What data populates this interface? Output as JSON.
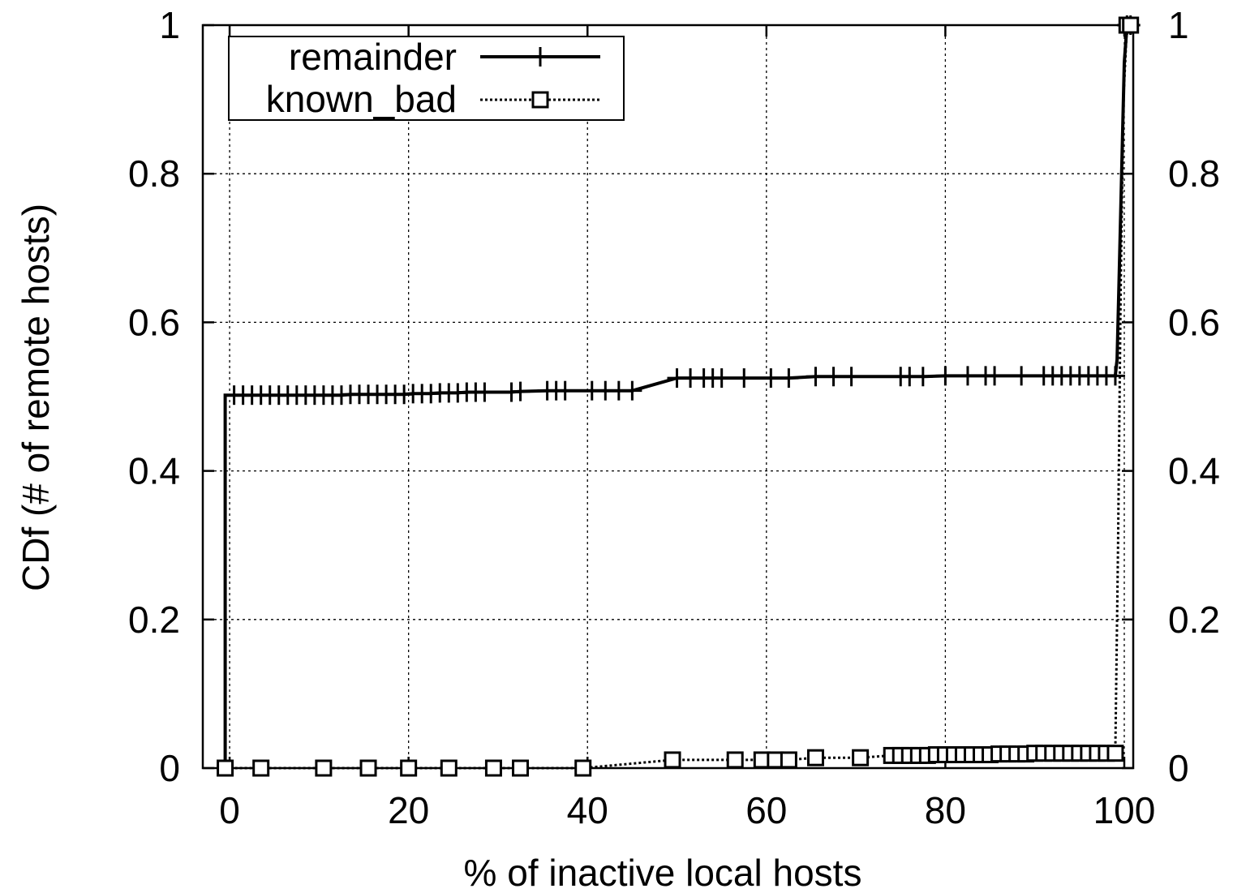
{
  "chart_data": {
    "type": "line",
    "xlabel": "% of inactive local hosts",
    "ylabel": "CDf (# of remote hosts)",
    "xlim": [
      -3,
      101
    ],
    "ylim": [
      0,
      1
    ],
    "x_ticks": [
      "0",
      "20",
      "40",
      "60",
      "80",
      "100"
    ],
    "y_ticks": [
      "0",
      "0.2",
      "0.4",
      "0.6",
      "0.8",
      "1"
    ],
    "y2_ticks": [
      "0",
      "0.2",
      "0.4",
      "0.6",
      "0.8",
      "1"
    ],
    "grid": true,
    "legend_position": "top-left",
    "series": [
      {
        "name": "remainder",
        "style": "solid",
        "marker": "plus",
        "color": "#000000",
        "points": [
          [
            -0.5,
            0
          ],
          [
            -0.5,
            0.502
          ],
          [
            0.5,
            0.502
          ],
          [
            1.5,
            0.502
          ],
          [
            2.5,
            0.502
          ],
          [
            3.5,
            0.502
          ],
          [
            4.5,
            0.502
          ],
          [
            5.5,
            0.502
          ],
          [
            6.5,
            0.502
          ],
          [
            7.5,
            0.502
          ],
          [
            8.5,
            0.502
          ],
          [
            9.5,
            0.502
          ],
          [
            10.5,
            0.502
          ],
          [
            11.5,
            0.502
          ],
          [
            12.5,
            0.502
          ],
          [
            13.5,
            0.503
          ],
          [
            14.5,
            0.503
          ],
          [
            15.5,
            0.503
          ],
          [
            16.5,
            0.503
          ],
          [
            17.5,
            0.503
          ],
          [
            18.5,
            0.503
          ],
          [
            19.5,
            0.503
          ],
          [
            20.5,
            0.504
          ],
          [
            21.5,
            0.504
          ],
          [
            22.5,
            0.504
          ],
          [
            23.5,
            0.505
          ],
          [
            24.5,
            0.505
          ],
          [
            25.5,
            0.505
          ],
          [
            26.5,
            0.506
          ],
          [
            27.5,
            0.506
          ],
          [
            28.5,
            0.506
          ],
          [
            31.5,
            0.506
          ],
          [
            32.5,
            0.507
          ],
          [
            35.5,
            0.508
          ],
          [
            36.5,
            0.508
          ],
          [
            37.5,
            0.508
          ],
          [
            40.5,
            0.508
          ],
          [
            42.0,
            0.508
          ],
          [
            43.5,
            0.508
          ],
          [
            45.0,
            0.508
          ],
          [
            50.0,
            0.525
          ],
          [
            51.5,
            0.525
          ],
          [
            53.0,
            0.525
          ],
          [
            54.0,
            0.525
          ],
          [
            55.0,
            0.525
          ],
          [
            57.5,
            0.525
          ],
          [
            60.5,
            0.525
          ],
          [
            62.5,
            0.525
          ],
          [
            65.5,
            0.527
          ],
          [
            67.5,
            0.527
          ],
          [
            69.5,
            0.527
          ],
          [
            75.0,
            0.527
          ],
          [
            76.0,
            0.527
          ],
          [
            77.5,
            0.527
          ],
          [
            80.0,
            0.528
          ],
          [
            82.5,
            0.528
          ],
          [
            84.5,
            0.528
          ],
          [
            85.5,
            0.528
          ],
          [
            88.5,
            0.528
          ],
          [
            91.0,
            0.528
          ],
          [
            92.0,
            0.528
          ],
          [
            93.0,
            0.528
          ],
          [
            94.0,
            0.528
          ],
          [
            95.0,
            0.528
          ],
          [
            96.0,
            0.528
          ],
          [
            97.0,
            0.528
          ],
          [
            98.0,
            0.528
          ],
          [
            99.0,
            0.528
          ],
          [
            99.2,
            0.55
          ],
          [
            99.4,
            0.65
          ],
          [
            99.6,
            0.75
          ],
          [
            99.8,
            0.85
          ],
          [
            100.0,
            0.95
          ],
          [
            100.3,
            1.0
          ],
          [
            100.7,
            1.0
          ]
        ],
        "markers": [
          [
            0.5,
            0.502
          ],
          [
            1.5,
            0.502
          ],
          [
            2.5,
            0.502
          ],
          [
            3.5,
            0.502
          ],
          [
            4.5,
            0.502
          ],
          [
            5.5,
            0.502
          ],
          [
            6.5,
            0.502
          ],
          [
            7.5,
            0.502
          ],
          [
            8.5,
            0.502
          ],
          [
            9.5,
            0.502
          ],
          [
            10.5,
            0.502
          ],
          [
            11.5,
            0.502
          ],
          [
            12.5,
            0.502
          ],
          [
            13.5,
            0.503
          ],
          [
            14.5,
            0.503
          ],
          [
            15.5,
            0.503
          ],
          [
            16.5,
            0.503
          ],
          [
            17.5,
            0.503
          ],
          [
            18.5,
            0.503
          ],
          [
            19.5,
            0.503
          ],
          [
            20.5,
            0.504
          ],
          [
            21.5,
            0.504
          ],
          [
            22.5,
            0.504
          ],
          [
            23.5,
            0.505
          ],
          [
            24.5,
            0.505
          ],
          [
            25.5,
            0.505
          ],
          [
            26.5,
            0.506
          ],
          [
            27.5,
            0.506
          ],
          [
            28.5,
            0.506
          ],
          [
            31.5,
            0.506
          ],
          [
            32.5,
            0.507
          ],
          [
            35.5,
            0.508
          ],
          [
            36.5,
            0.508
          ],
          [
            37.5,
            0.508
          ],
          [
            40.5,
            0.508
          ],
          [
            42.0,
            0.508
          ],
          [
            43.5,
            0.508
          ],
          [
            45.0,
            0.508
          ],
          [
            50.0,
            0.525
          ],
          [
            51.5,
            0.525
          ],
          [
            53.0,
            0.525
          ],
          [
            54.0,
            0.525
          ],
          [
            55.0,
            0.525
          ],
          [
            57.5,
            0.525
          ],
          [
            60.5,
            0.525
          ],
          [
            62.5,
            0.525
          ],
          [
            65.5,
            0.527
          ],
          [
            67.5,
            0.527
          ],
          [
            69.5,
            0.527
          ],
          [
            75.0,
            0.527
          ],
          [
            76.0,
            0.527
          ],
          [
            77.5,
            0.527
          ],
          [
            80.0,
            0.528
          ],
          [
            82.5,
            0.528
          ],
          [
            84.5,
            0.528
          ],
          [
            85.5,
            0.528
          ],
          [
            88.5,
            0.528
          ],
          [
            91.0,
            0.528
          ],
          [
            92.0,
            0.528
          ],
          [
            93.0,
            0.528
          ],
          [
            94.0,
            0.528
          ],
          [
            95.0,
            0.528
          ],
          [
            96.0,
            0.528
          ],
          [
            97.0,
            0.528
          ],
          [
            98.0,
            0.528
          ],
          [
            99.0,
            0.528
          ],
          [
            100.3,
            1.0
          ],
          [
            100.7,
            1.0
          ]
        ]
      },
      {
        "name": "known_bad",
        "style": "dotted",
        "marker": "square",
        "color": "#000000",
        "points": [
          [
            -0.5,
            0
          ],
          [
            3.5,
            0
          ],
          [
            10.5,
            0
          ],
          [
            15.5,
            0
          ],
          [
            20.0,
            0
          ],
          [
            24.5,
            0
          ],
          [
            29.5,
            0
          ],
          [
            32.5,
            0
          ],
          [
            39.5,
            0
          ],
          [
            49.5,
            0.011
          ],
          [
            56.5,
            0.011
          ],
          [
            59.5,
            0.011
          ],
          [
            61.0,
            0.011
          ],
          [
            62.5,
            0.011
          ],
          [
            65.5,
            0.014
          ],
          [
            70.5,
            0.014
          ],
          [
            74.0,
            0.017
          ],
          [
            75.0,
            0.017
          ],
          [
            76.0,
            0.017
          ],
          [
            77.0,
            0.017
          ],
          [
            78.0,
            0.017
          ],
          [
            79.0,
            0.018
          ],
          [
            80.0,
            0.018
          ],
          [
            81.0,
            0.018
          ],
          [
            82.0,
            0.018
          ],
          [
            83.0,
            0.018
          ],
          [
            84.0,
            0.018
          ],
          [
            85.0,
            0.018
          ],
          [
            86.0,
            0.019
          ],
          [
            87.0,
            0.019
          ],
          [
            88.0,
            0.019
          ],
          [
            89.0,
            0.019
          ],
          [
            90.0,
            0.02
          ],
          [
            91.0,
            0.02
          ],
          [
            92.0,
            0.02
          ],
          [
            93.0,
            0.02
          ],
          [
            94.0,
            0.02
          ],
          [
            95.0,
            0.02
          ],
          [
            96.0,
            0.02
          ],
          [
            97.0,
            0.02
          ],
          [
            98.0,
            0.02
          ],
          [
            99.0,
            0.02
          ],
          [
            99.3,
            0.3
          ],
          [
            99.6,
            0.65
          ],
          [
            99.9,
            0.9
          ],
          [
            100.3,
            1.0
          ],
          [
            100.7,
            1.0
          ]
        ],
        "markers": [
          [
            -0.5,
            0
          ],
          [
            3.5,
            0
          ],
          [
            10.5,
            0
          ],
          [
            15.5,
            0
          ],
          [
            20.0,
            0
          ],
          [
            24.5,
            0
          ],
          [
            29.5,
            0
          ],
          [
            32.5,
            0
          ],
          [
            39.5,
            0
          ],
          [
            49.5,
            0.011
          ],
          [
            56.5,
            0.011
          ],
          [
            59.5,
            0.011
          ],
          [
            61.0,
            0.011
          ],
          [
            62.5,
            0.011
          ],
          [
            65.5,
            0.014
          ],
          [
            70.5,
            0.014
          ],
          [
            74.0,
            0.017
          ],
          [
            75.0,
            0.017
          ],
          [
            76.0,
            0.017
          ],
          [
            77.0,
            0.017
          ],
          [
            78.0,
            0.017
          ],
          [
            79.0,
            0.018
          ],
          [
            80.0,
            0.018
          ],
          [
            81.0,
            0.018
          ],
          [
            82.0,
            0.018
          ],
          [
            83.0,
            0.018
          ],
          [
            84.0,
            0.018
          ],
          [
            85.0,
            0.018
          ],
          [
            86.0,
            0.019
          ],
          [
            87.0,
            0.019
          ],
          [
            88.0,
            0.019
          ],
          [
            89.0,
            0.019
          ],
          [
            90.0,
            0.02
          ],
          [
            91.0,
            0.02
          ],
          [
            92.0,
            0.02
          ],
          [
            93.0,
            0.02
          ],
          [
            94.0,
            0.02
          ],
          [
            95.0,
            0.02
          ],
          [
            96.0,
            0.02
          ],
          [
            97.0,
            0.02
          ],
          [
            98.0,
            0.02
          ],
          [
            99.0,
            0.02
          ],
          [
            100.3,
            1.0
          ],
          [
            100.7,
            1.0
          ]
        ]
      }
    ]
  }
}
